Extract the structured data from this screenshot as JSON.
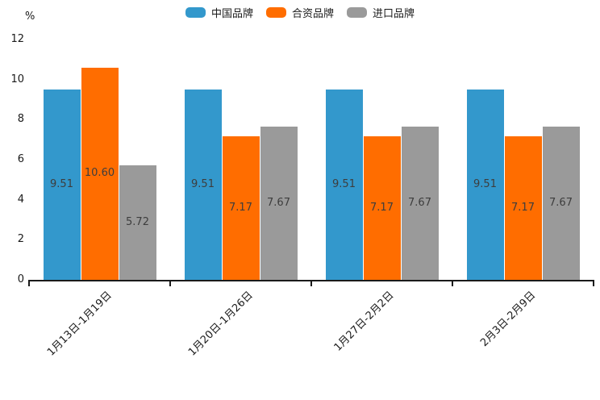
{
  "chart_data": {
    "type": "bar",
    "title": "",
    "xlabel": "",
    "ylabel": "",
    "unit_label": "%",
    "categories": [
      "1月13日-1月19日",
      "1月20日-1月26日",
      "1月27日-2月2日",
      "2月3日-2月9日"
    ],
    "series": [
      {
        "name": "中国品牌",
        "color": "#3398cc",
        "values": [
          9.51,
          9.51,
          9.51,
          9.51
        ]
      },
      {
        "name": "合资品牌",
        "color": "#ff6d00",
        "values": [
          10.6,
          7.17,
          7.17,
          7.17
        ]
      },
      {
        "name": "进口品牌",
        "color": "#9a9a9a",
        "values": [
          5.72,
          7.67,
          7.67,
          7.67
        ]
      }
    ],
    "value_labels": [
      [
        "9.51",
        "10.60",
        "5.72"
      ],
      [
        "9.51",
        "7.17",
        "7.67"
      ],
      [
        "9.51",
        "7.17",
        "7.67"
      ],
      [
        "9.51",
        "7.17",
        "7.67"
      ]
    ],
    "value_label_decimals": 2,
    "ylim": [
      0,
      12
    ],
    "yticks": [
      0,
      2,
      4,
      6,
      8,
      10,
      12
    ],
    "grid": false,
    "legend_position": "top",
    "axis_color": "#1a1a1a",
    "value_label_color": "#3d3d3d"
  }
}
